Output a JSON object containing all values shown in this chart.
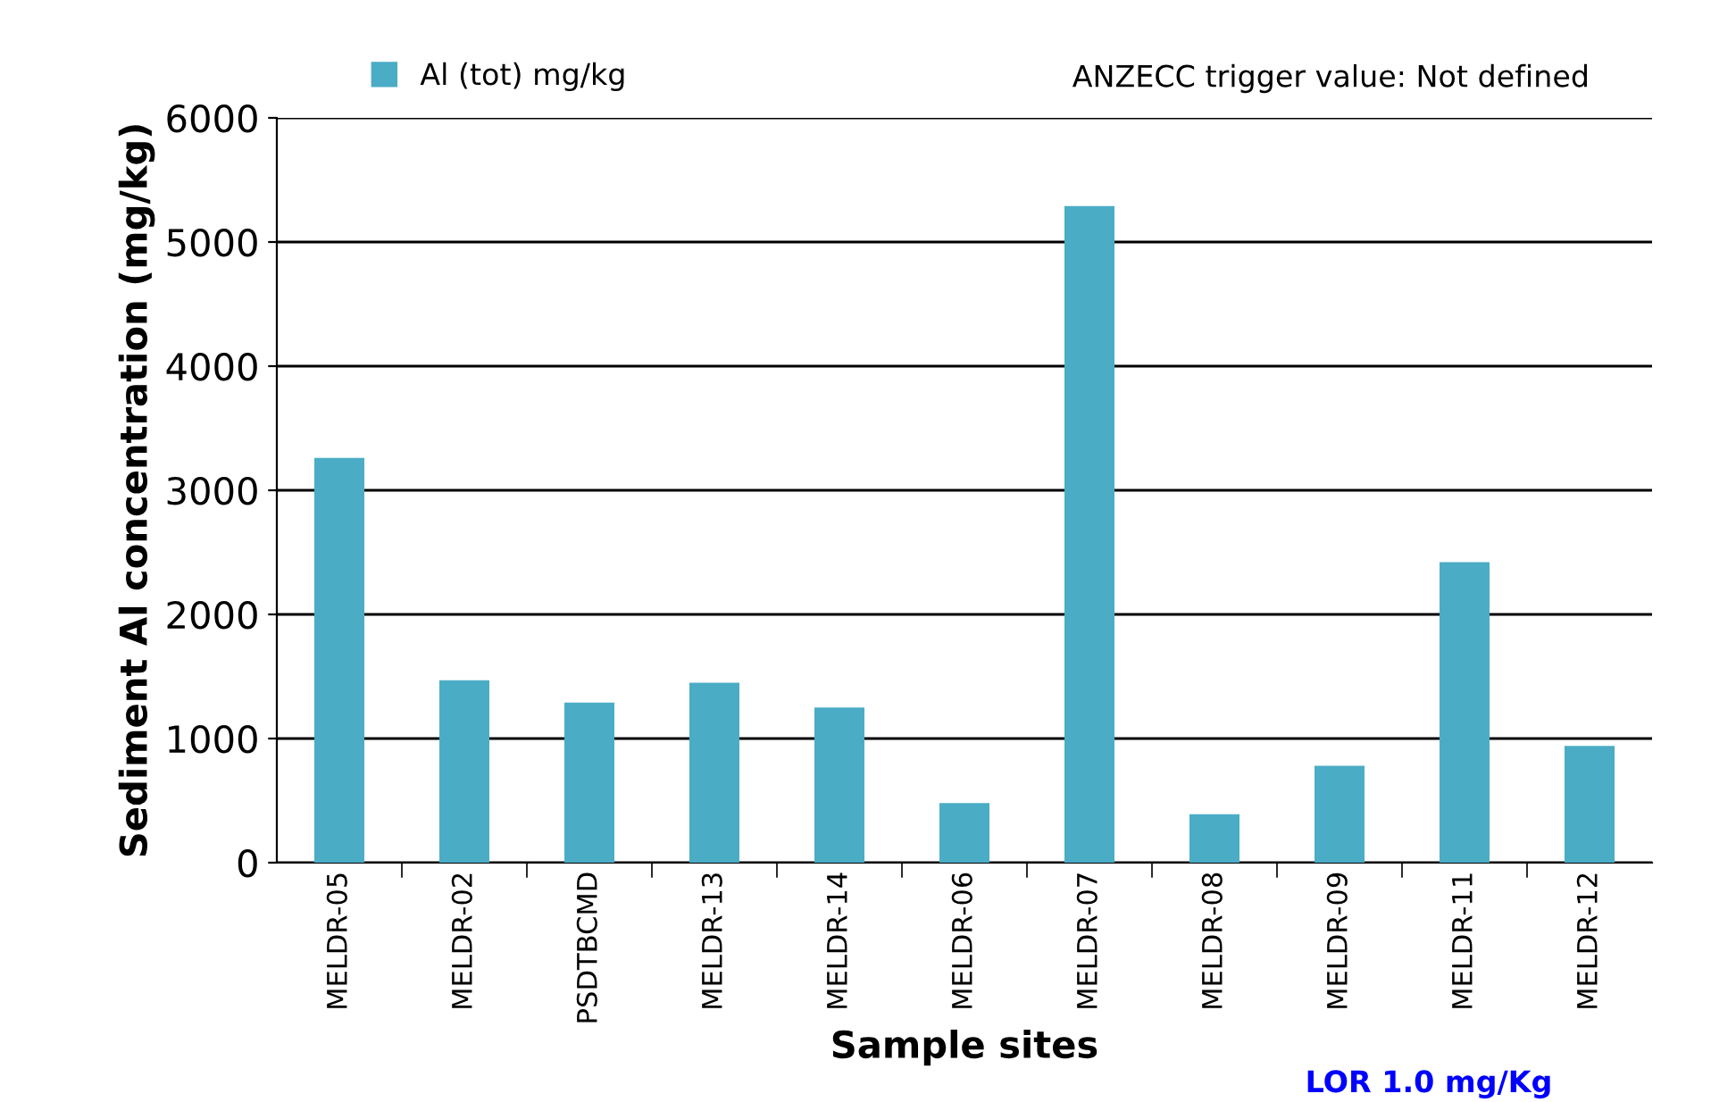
{
  "chart_data": {
    "type": "bar",
    "xlabel": "Sample sites",
    "ylabel": "Sediment Al concentration (mg/kg)",
    "categories": [
      "MELDR-05",
      "MELDR-02",
      "PSDTBCMD",
      "MELDR-13",
      "MELDR-14",
      "MELDR-06",
      "MELDR-07",
      "MELDR-08",
      "MELDR-09",
      "MELDR-11",
      "MELDR-12"
    ],
    "series": [
      {
        "name": "Al (tot) mg/kg",
        "color": "#4bacc6",
        "values": [
          3260,
          1470,
          1290,
          1450,
          1250,
          480,
          5290,
          390,
          780,
          2420,
          940
        ]
      }
    ],
    "ylim": [
      0,
      6000
    ],
    "yticks": [
      0,
      1000,
      2000,
      3000,
      4000,
      5000,
      6000
    ],
    "grid": "y",
    "legend": "top left",
    "annotations": [
      "ANZECC trigger value: Not defined",
      "LOR 1.0 mg/Kg"
    ]
  }
}
